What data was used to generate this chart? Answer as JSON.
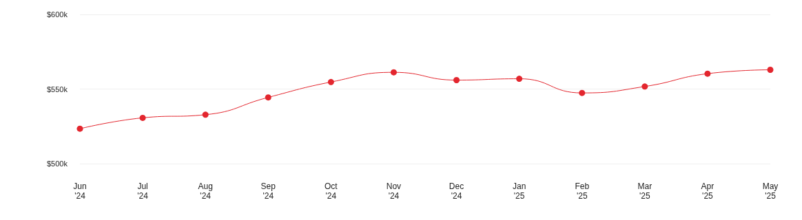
{
  "chart_data": {
    "type": "line",
    "categories": [
      "Jun\n'24",
      "Jul\n'24",
      "Aug\n'24",
      "Sep\n'24",
      "Oct\n'24",
      "Nov\n'24",
      "Dec\n'24",
      "Jan\n'25",
      "Feb\n'25",
      "Mar\n'25",
      "Apr\n'25",
      "May\n'25"
    ],
    "series": [
      {
        "color": "#e3262e",
        "values": [
          523400,
          530700,
          532800,
          544400,
          554700,
          561200,
          556000,
          556900,
          547400,
          551700,
          560300,
          562900
        ]
      }
    ],
    "ylim": [
      500000,
      600000
    ],
    "yticks": [
      {
        "value": 500000,
        "label": "$500k"
      },
      {
        "value": 550000,
        "label": "$550k"
      },
      {
        "value": 600000,
        "label": "$600k"
      }
    ],
    "grid": "y",
    "marker": "circle"
  }
}
